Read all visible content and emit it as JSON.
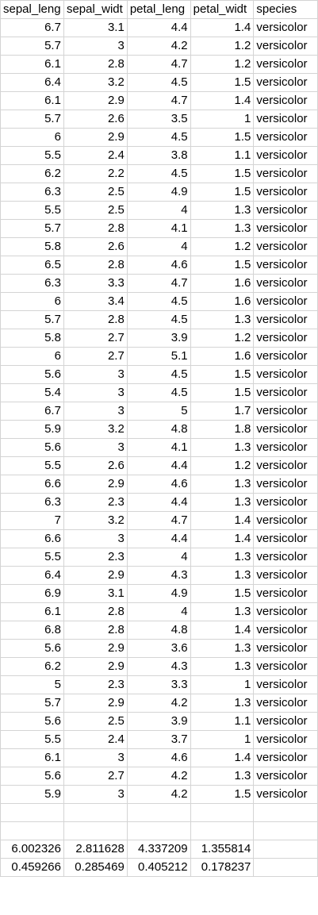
{
  "sheet": {
    "headers": [
      "sepal_leng",
      "sepal_widt",
      "petal_leng",
      "petal_widt",
      "species"
    ],
    "rows": [
      [
        "6.7",
        "3.1",
        "4.4",
        "1.4",
        "versicolor"
      ],
      [
        "5.7",
        "3",
        "4.2",
        "1.2",
        "versicolor"
      ],
      [
        "6.1",
        "2.8",
        "4.7",
        "1.2",
        "versicolor"
      ],
      [
        "6.4",
        "3.2",
        "4.5",
        "1.5",
        "versicolor"
      ],
      [
        "6.1",
        "2.9",
        "4.7",
        "1.4",
        "versicolor"
      ],
      [
        "5.7",
        "2.6",
        "3.5",
        "1",
        "versicolor"
      ],
      [
        "6",
        "2.9",
        "4.5",
        "1.5",
        "versicolor"
      ],
      [
        "5.5",
        "2.4",
        "3.8",
        "1.1",
        "versicolor"
      ],
      [
        "6.2",
        "2.2",
        "4.5",
        "1.5",
        "versicolor"
      ],
      [
        "6.3",
        "2.5",
        "4.9",
        "1.5",
        "versicolor"
      ],
      [
        "5.5",
        "2.5",
        "4",
        "1.3",
        "versicolor"
      ],
      [
        "5.7",
        "2.8",
        "4.1",
        "1.3",
        "versicolor"
      ],
      [
        "5.8",
        "2.6",
        "4",
        "1.2",
        "versicolor"
      ],
      [
        "6.5",
        "2.8",
        "4.6",
        "1.5",
        "versicolor"
      ],
      [
        "6.3",
        "3.3",
        "4.7",
        "1.6",
        "versicolor"
      ],
      [
        "6",
        "3.4",
        "4.5",
        "1.6",
        "versicolor"
      ],
      [
        "5.7",
        "2.8",
        "4.5",
        "1.3",
        "versicolor"
      ],
      [
        "5.8",
        "2.7",
        "3.9",
        "1.2",
        "versicolor"
      ],
      [
        "6",
        "2.7",
        "5.1",
        "1.6",
        "versicolor"
      ],
      [
        "5.6",
        "3",
        "4.5",
        "1.5",
        "versicolor"
      ],
      [
        "5.4",
        "3",
        "4.5",
        "1.5",
        "versicolor"
      ],
      [
        "6.7",
        "3",
        "5",
        "1.7",
        "versicolor"
      ],
      [
        "5.9",
        "3.2",
        "4.8",
        "1.8",
        "versicolor"
      ],
      [
        "5.6",
        "3",
        "4.1",
        "1.3",
        "versicolor"
      ],
      [
        "5.5",
        "2.6",
        "4.4",
        "1.2",
        "versicolor"
      ],
      [
        "6.6",
        "2.9",
        "4.6",
        "1.3",
        "versicolor"
      ],
      [
        "6.3",
        "2.3",
        "4.4",
        "1.3",
        "versicolor"
      ],
      [
        "7",
        "3.2",
        "4.7",
        "1.4",
        "versicolor"
      ],
      [
        "6.6",
        "3",
        "4.4",
        "1.4",
        "versicolor"
      ],
      [
        "5.5",
        "2.3",
        "4",
        "1.3",
        "versicolor"
      ],
      [
        "6.4",
        "2.9",
        "4.3",
        "1.3",
        "versicolor"
      ],
      [
        "6.9",
        "3.1",
        "4.9",
        "1.5",
        "versicolor"
      ],
      [
        "6.1",
        "2.8",
        "4",
        "1.3",
        "versicolor"
      ],
      [
        "6.8",
        "2.8",
        "4.8",
        "1.4",
        "versicolor"
      ],
      [
        "5.6",
        "2.9",
        "3.6",
        "1.3",
        "versicolor"
      ],
      [
        "6.2",
        "2.9",
        "4.3",
        "1.3",
        "versicolor"
      ],
      [
        "5",
        "2.3",
        "3.3",
        "1",
        "versicolor"
      ],
      [
        "5.7",
        "2.9",
        "4.2",
        "1.3",
        "versicolor"
      ],
      [
        "5.6",
        "2.5",
        "3.9",
        "1.1",
        "versicolor"
      ],
      [
        "5.5",
        "2.4",
        "3.7",
        "1",
        "versicolor"
      ],
      [
        "6.1",
        "3",
        "4.6",
        "1.4",
        "versicolor"
      ],
      [
        "5.6",
        "2.7",
        "4.2",
        "1.3",
        "versicolor"
      ],
      [
        "5.9",
        "3",
        "4.2",
        "1.5",
        "versicolor"
      ],
      [
        "",
        "",
        "",
        "",
        ""
      ],
      [
        "",
        "",
        "",
        "",
        ""
      ],
      [
        "6.002326",
        "2.811628",
        "4.337209",
        "1.355814",
        ""
      ],
      [
        "0.459266",
        "0.285469",
        "0.405212",
        "0.178237",
        ""
      ]
    ]
  }
}
